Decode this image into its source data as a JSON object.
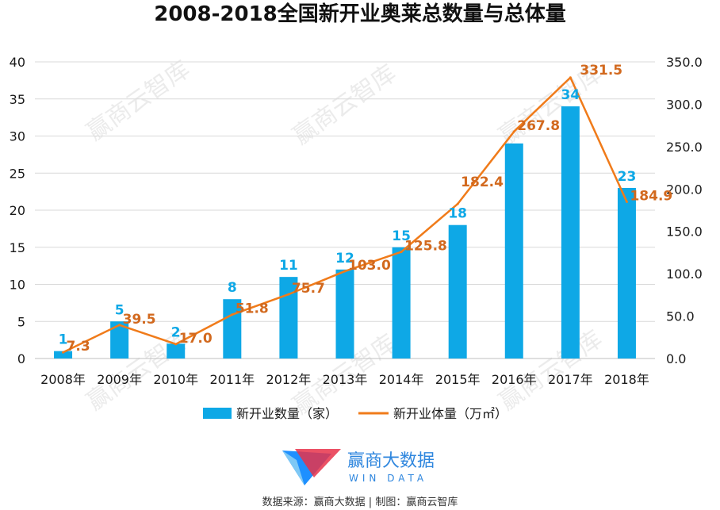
{
  "title": "2008-2018全国新开业奥莱总数量与总体量",
  "colors": {
    "bar": "#0EA8E6",
    "line": "#F07B1A",
    "line_label": "#D2691E",
    "grid": "#D9D9D9"
  },
  "chart_data": {
    "type": "bar+line",
    "categories": [
      "2008年",
      "2009年",
      "2010年",
      "2011年",
      "2012年",
      "2013年",
      "2014年",
      "2015年",
      "2016年",
      "2017年",
      "2018年"
    ],
    "series": [
      {
        "name": "新开业数量（家）",
        "kind": "bar",
        "axis": "left",
        "values": [
          1,
          5,
          2,
          8,
          11,
          12,
          15,
          18,
          29,
          34,
          23
        ],
        "labels": [
          "1",
          "5",
          "2",
          "8",
          "11",
          "12",
          "15",
          "18",
          "",
          "34",
          "23"
        ]
      },
      {
        "name": "新开业体量（万㎡）",
        "kind": "line",
        "axis": "right",
        "values": [
          7.3,
          39.5,
          17.0,
          51.8,
          75.7,
          103.0,
          125.8,
          182.4,
          267.8,
          331.5,
          184.9
        ],
        "labels": [
          "7.3",
          "39.5",
          "17.0",
          "51.8",
          "75.7",
          "103.0",
          "125.8",
          "182.4",
          "267.8",
          "331.5",
          "184.9"
        ]
      }
    ],
    "y_left": {
      "min": 0,
      "max": 40,
      "ticks": [
        "0",
        "5",
        "10",
        "15",
        "20",
        "25",
        "30",
        "35",
        "40"
      ]
    },
    "y_right": {
      "min": 0,
      "max": 350,
      "ticks": [
        "0.0",
        "50.0",
        "100.0",
        "150.0",
        "200.0",
        "250.0",
        "300.0",
        "350.0"
      ]
    },
    "grid": true,
    "legend_position": "bottom"
  },
  "logo": {
    "cn": "赢商大数据",
    "en": "WIN DATA"
  },
  "watermark": "赢商云智库",
  "source": "数据来源：赢商大数据 | 制图：赢商云智库"
}
